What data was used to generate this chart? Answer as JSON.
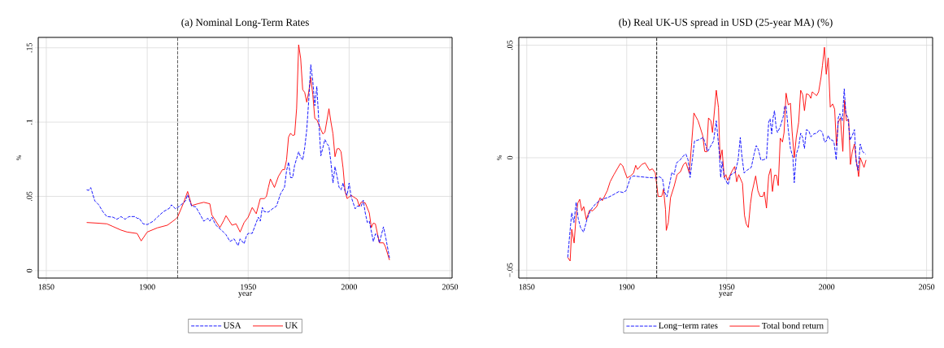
{
  "chart_data": [
    {
      "type": "line",
      "title": "(a) Nominal Long-Term Rates",
      "xlabel": "year",
      "ylabel": "%",
      "xlim": [
        1846,
        2051
      ],
      "ylim": [
        -0.005,
        0.157
      ],
      "xticks": [
        1850,
        1900,
        1950,
        2000,
        2050
      ],
      "yticks": [
        {
          "value": 0,
          "label": "0"
        },
        {
          "value": 0.05,
          "label": ".05"
        },
        {
          "value": 0.1,
          "label": ".1"
        },
        {
          "value": 0.15,
          "label": ".15"
        }
      ],
      "grid": true,
      "legend": "bottom",
      "ref_lines": [
        {
          "axis": "x",
          "value": 1915,
          "color": "#000000",
          "line_style": "dashed"
        }
      ],
      "series": [
        {
          "name": "USA",
          "color": "#0000ff",
          "line_style": "dashed",
          "x": [
            1870,
            1871,
            1872,
            1874,
            1876,
            1878,
            1880,
            1883,
            1885,
            1887,
            1889,
            1891,
            1894,
            1895,
            1896,
            1898,
            1900,
            1903,
            1905,
            1908,
            1911,
            1912,
            1914,
            1916,
            1919,
            1920,
            1922,
            1924,
            1926,
            1928,
            1930,
            1931,
            1932,
            1934,
            1937,
            1939,
            1941,
            1943,
            1945,
            1946,
            1948,
            1949,
            1950,
            1952,
            1954,
            1955,
            1956,
            1957,
            1958,
            1960,
            1962,
            1964,
            1966,
            1968,
            1969,
            1970,
            1971,
            1972,
            1973,
            1975,
            1976,
            1977,
            1978,
            1979,
            1980,
            1981,
            1982,
            1983,
            1984,
            1985,
            1986,
            1988,
            1989,
            1990,
            1991,
            1992,
            1993,
            1994,
            1995,
            1996,
            1997,
            1998,
            1999,
            2000,
            2001,
            2003,
            2004,
            2006,
            2007,
            2008,
            2009,
            2010,
            2012,
            2013,
            2014,
            2015,
            2017,
            2018,
            2020
          ],
          "values": [
            0.0544,
            0.054,
            0.0559,
            0.047,
            0.0443,
            0.0397,
            0.0364,
            0.036,
            0.0346,
            0.0364,
            0.0346,
            0.0364,
            0.0364,
            0.0352,
            0.0352,
            0.0315,
            0.031,
            0.0333,
            0.036,
            0.0397,
            0.042,
            0.0443,
            0.0416,
            0.0434,
            0.047,
            0.0511,
            0.0434,
            0.043,
            0.0383,
            0.0333,
            0.0352,
            0.0333,
            0.036,
            0.0306,
            0.027,
            0.0242,
            0.0196,
            0.0214,
            0.0168,
            0.0214,
            0.0181,
            0.0229,
            0.0251,
            0.0251,
            0.0324,
            0.036,
            0.0333,
            0.0425,
            0.0397,
            0.0394,
            0.0416,
            0.0434,
            0.0516,
            0.0562,
            0.0672,
            0.073,
            0.0626,
            0.0626,
            0.0709,
            0.08,
            0.0764,
            0.0745,
            0.0828,
            0.0947,
            0.1148,
            0.1386,
            0.1277,
            0.111,
            0.124,
            0.1,
            0.0773,
            0.0883,
            0.0855,
            0.0837,
            0.0727,
            0.059,
            0.07,
            0.0636,
            0.0562,
            0.0544,
            0.059,
            0.0535,
            0.0507,
            0.059,
            0.0498,
            0.0416,
            0.0434,
            0.0434,
            0.0474,
            0.0388,
            0.0324,
            0.0333,
            0.0196,
            0.0247,
            0.0242,
            0.0187,
            0.0295,
            0.0232,
            0.0086
          ]
        },
        {
          "name": "UK",
          "color": "#ff0000",
          "line_style": "solid",
          "x": [
            1870,
            1875,
            1880,
            1883,
            1887,
            1890,
            1895,
            1897,
            1900,
            1905,
            1910,
            1914,
            1915,
            1918,
            1920,
            1922,
            1925,
            1928,
            1931,
            1932,
            1936,
            1938,
            1939,
            1942,
            1944,
            1946,
            1948,
            1950,
            1952,
            1954,
            1956,
            1958,
            1959,
            1960,
            1961,
            1963,
            1965,
            1967,
            1968,
            1969,
            1970,
            1971,
            1972,
            1973,
            1974,
            1975,
            1976,
            1977,
            1978,
            1979,
            1980,
            1981,
            1982,
            1983,
            1984,
            1986,
            1987,
            1988,
            1990,
            1991,
            1992,
            1993,
            1994,
            1995,
            1996,
            1997,
            1998,
            1999,
            2001,
            2002,
            2004,
            2005,
            2006,
            2008,
            2010,
            2011,
            2012,
            2013,
            2014,
            2015,
            2017,
            2018,
            2020
          ],
          "values": [
            0.0324,
            0.032,
            0.0315,
            0.0297,
            0.0273,
            0.026,
            0.025,
            0.02,
            0.026,
            0.0288,
            0.0306,
            0.0346,
            0.036,
            0.0456,
            0.0533,
            0.0438,
            0.045,
            0.046,
            0.045,
            0.0375,
            0.029,
            0.034,
            0.037,
            0.0306,
            0.0315,
            0.026,
            0.0324,
            0.036,
            0.0425,
            0.0383,
            0.0485,
            0.0485,
            0.0498,
            0.056,
            0.0617,
            0.056,
            0.0635,
            0.068,
            0.068,
            0.0745,
            0.09,
            0.0925,
            0.091,
            0.0914,
            0.1093,
            0.152,
            0.1428,
            0.1218,
            0.12,
            0.1134,
            0.1203,
            0.13,
            0.1185,
            0.1024,
            0.1016,
            0.095,
            0.092,
            0.0932,
            0.109,
            0.1,
            0.092,
            0.0767,
            0.082,
            0.0822,
            0.08,
            0.069,
            0.0535,
            0.0485,
            0.0507,
            0.0498,
            0.048,
            0.0434,
            0.0462,
            0.0456,
            0.0388,
            0.029,
            0.032,
            0.0315,
            0.0251,
            0.0187,
            0.0187,
            0.016,
            0.0071
          ]
        }
      ]
    },
    {
      "type": "line",
      "title": "(b)  Real UK-US spread in USD (25-year MA) (%)",
      "xlabel": "year",
      "ylabel": "%",
      "xlim": [
        1846,
        2053
      ],
      "ylim": [
        -0.0535,
        0.0535
      ],
      "xticks": [
        1850,
        1900,
        1950,
        2000,
        2050
      ],
      "yticks": [
        {
          "value": -0.05,
          "label": "−.05"
        },
        {
          "value": 0,
          "label": "0"
        },
        {
          "value": 0.05,
          "label": ".05"
        }
      ],
      "grid": true,
      "legend": "bottom",
      "ref_lines": [
        {
          "axis": "x",
          "value": 1915,
          "color": "#000000",
          "line_style": "dashed"
        }
      ],
      "series": [
        {
          "name": "Long−term rates",
          "color": "#0000ff",
          "line_style": "dashed",
          "x": [
            1870.5,
            1871.7,
            1872.5,
            1873.6,
            1874.7,
            1875.7,
            1876.9,
            1878.4,
            1880.1,
            1881.9,
            1884.5,
            1887.4,
            1890.3,
            1893.2,
            1896.1,
            1898.3,
            1899.7,
            1901.9,
            1903.4,
            1906.3,
            1910.7,
            1914.3,
            1916.5,
            1917.9,
            1918.9,
            1920.1,
            1921.5,
            1922.6,
            1923.7,
            1924.9,
            1926.7,
            1928.4,
            1929.6,
            1930.7,
            1931.7,
            1932.8,
            1933.9,
            1936.1,
            1938.3,
            1940,
            1940.5,
            1941.5,
            1943.4,
            1944.8,
            1946.3,
            1947,
            1947.7,
            1948.8,
            1950.7,
            1952.1,
            1954.3,
            1955.7,
            1956.8,
            1957.5,
            1958.7,
            1960.1,
            1962.3,
            1963.7,
            1964.8,
            1965.9,
            1967.1,
            1968.1,
            1969.9,
            1971,
            1971.7,
            1972.5,
            1973.2,
            1973.9,
            1974.7,
            1975.4,
            1976.8,
            1978.3,
            1979,
            1979.7,
            1980.8,
            1981.9,
            1983.1,
            1983.8,
            1984.8,
            1986,
            1987,
            1988,
            1988.9,
            1989.9,
            1991.1,
            1992.1,
            1993.6,
            1995,
            1996.5,
            1997.9,
            1998.9,
            1999.8,
            2000.8,
            2001.8,
            2003,
            2003.7,
            2004.8,
            2005.8,
            2006.6,
            2007.8,
            2008.8,
            2009.6,
            2010.7,
            2011.7,
            2012.8,
            2013.9,
            2014.8,
            2015.7,
            2016.8,
            2017.9,
            2019.5
          ],
          "values": [
            -0.0443,
            -0.032,
            -0.0245,
            -0.0288,
            -0.0198,
            -0.0269,
            -0.031,
            -0.0331,
            -0.0275,
            -0.0233,
            -0.0204,
            -0.0185,
            -0.0178,
            -0.0165,
            -0.015,
            -0.0155,
            -0.0146,
            -0.0088,
            -0.0081,
            -0.0084,
            -0.0088,
            -0.009,
            -0.0085,
            -0.0094,
            -0.0152,
            -0.0174,
            -0.0114,
            -0.0065,
            -0.0075,
            -0.0023,
            -0.001,
            0.0009,
            0.0016,
            -0.001,
            -0.0088,
            -0.001,
            0.0074,
            0.008,
            0.009,
            0.0041,
            0.0028,
            0.0044,
            0.0074,
            0.0164,
            0.0022,
            -0.0088,
            -0.0017,
            -0.0088,
            -0.012,
            -0.0075,
            -0.0065,
            -0.001,
            0.009,
            0.0016,
            -0.0068,
            -0.0056,
            -0.0043,
            0.0016,
            0.0054,
            0.0035,
            -0.001,
            -0.001,
            -0.0004,
            0.0158,
            0.0173,
            0.0106,
            0.0177,
            0.0209,
            0.0138,
            0.0112,
            0.0138,
            0.0183,
            0.0229,
            0.0229,
            0.0125,
            0.0041,
            0.0003,
            -0.0111,
            0.0016,
            0.0048,
            0.0109,
            0.009,
            0.0041,
            0.0125,
            0.0119,
            0.0093,
            0.0106,
            0.0109,
            0.0125,
            0.0112,
            0.007,
            0.0074,
            0.0099,
            0.008,
            0.0078,
            0.0067,
            -0.001,
            0.0177,
            0.0196,
            0.0164,
            0.0306,
            0.0196,
            0.0177,
            0.0078,
            0.0099,
            0.0125,
            -0.0023,
            -0.0056,
            0.0061,
            0.0028,
            0.0016
          ]
        },
        {
          "name": "Total bond return",
          "color": "#ff0000",
          "line_style": "solid",
          "x": [
            1870.5,
            1871.7,
            1872.5,
            1873.7,
            1874.6,
            1875.5,
            1876.5,
            1877.5,
            1878.5,
            1879.8,
            1881.4,
            1883,
            1885,
            1886.7,
            1887.8,
            1890.3,
            1891.7,
            1893.6,
            1896.8,
            1898,
            1900.2,
            1901.9,
            1903.4,
            1904.5,
            1905.4,
            1907.5,
            1909.2,
            1911.4,
            1912.8,
            1914.3,
            1915.7,
            1917.5,
            1918.4,
            1919.4,
            1919.8,
            1920.8,
            1921.9,
            1923.7,
            1925.2,
            1926.9,
            1928.4,
            1929.6,
            1931.3,
            1932.5,
            1933.6,
            1935.7,
            1938,
            1939,
            1940,
            1940.9,
            1942.1,
            1942.9,
            1944.8,
            1945.9,
            1946.7,
            1947.7,
            1948.8,
            1949.6,
            1950.5,
            1952.5,
            1954,
            1955,
            1956,
            1957.9,
            1958.9,
            1959.8,
            1960.8,
            1961.9,
            1962.7,
            1964.5,
            1965.6,
            1966.7,
            1968.1,
            1968.8,
            1969.9,
            1971,
            1972,
            1972.9,
            1973.9,
            1974.9,
            1975.8,
            1976.8,
            1977.9,
            1978.7,
            1979.7,
            1980.8,
            1981.9,
            1982.7,
            1983.8,
            1984.8,
            1986,
            1987,
            1988,
            1988.9,
            1989.9,
            1991.1,
            1992.1,
            1992.8,
            1993.9,
            1995,
            1996,
            1997.2,
            1997.9,
            1998.9,
            1999.8,
            2000.8,
            2001.8,
            2003,
            2004,
            2004.9,
            2005.8,
            2006.9,
            2008.1,
            2009,
            2009.9,
            2011,
            2011.9,
            2012.8,
            2013.9,
            2014.8,
            2016,
            2016.8,
            2018.7,
            2019.7
          ],
          "values": [
            -0.0443,
            -0.0459,
            -0.0318,
            -0.0379,
            -0.0269,
            -0.0202,
            -0.0185,
            -0.0236,
            -0.0217,
            -0.0275,
            -0.0233,
            -0.0236,
            -0.0217,
            -0.0178,
            -0.0191,
            -0.0146,
            -0.0107,
            -0.0075,
            -0.0026,
            -0.0036,
            -0.009,
            -0.0081,
            -0.0068,
            -0.0034,
            -0.0052,
            -0.003,
            -0.0023,
            -0.0056,
            -0.0049,
            -0.0068,
            -0.0172,
            -0.0172,
            -0.014,
            -0.023,
            -0.0323,
            -0.0288,
            -0.0178,
            -0.0127,
            -0.0075,
            -0.0062,
            -0.003,
            -0.0021,
            -0.0068,
            0.0067,
            0.0199,
            0.0164,
            0.0099,
            0.0028,
            0.0026,
            0.0177,
            0.0164,
            0.0112,
            0.03,
            0.0222,
            -0.001,
            0.0035,
            -0.0088,
            -0.0075,
            -0.0101,
            -0.0062,
            -0.0039,
            -0.0107,
            -0.0075,
            -0.0114,
            -0.0256,
            -0.0295,
            -0.031,
            -0.0204,
            -0.0152,
            -0.0081,
            -0.0146,
            -0.0172,
            -0.0172,
            -0.0152,
            -0.0224,
            -0.0081,
            -0.0049,
            -0.015,
            -0.0078,
            -0.0078,
            -0.0124,
            0.0087,
            0.007,
            0.0112,
            0.0287,
            0.0235,
            0.0242,
            0.0119,
            0,
            0.009,
            0.0158,
            0.03,
            0.028,
            0.0209,
            0.0284,
            0.028,
            0.0264,
            0.0293,
            0.0284,
            0.0276,
            0.0293,
            0.0358,
            0.041,
            0.0491,
            0.0371,
            0.0444,
            0.0225,
            0.0239,
            0.0216,
            0.0054,
            0.0158,
            0.0177,
            0.0028,
            0.0255,
            0.0164,
            0.0171,
            -0.003,
            0.0026,
            0.0061,
            -0.001,
            -0.0084,
            0,
            -0.0043,
            -0.001
          ]
        }
      ]
    }
  ]
}
